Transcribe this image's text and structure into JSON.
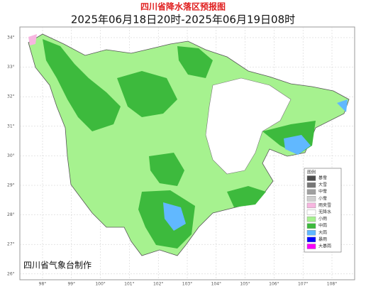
{
  "header": {
    "title": "四川省降水落区预报图",
    "subtitle": "2025年06月18日20时-2025年06月19日08时"
  },
  "map": {
    "lat_labels": [
      "34°",
      "33°",
      "32°",
      "31°",
      "30°",
      "29°",
      "28°",
      "27°",
      "26°"
    ],
    "lon_labels": [
      "98°",
      "99°",
      "100°",
      "101°",
      "102°",
      "103°",
      "104°",
      "105°",
      "106°",
      "107°",
      "108°"
    ],
    "credit": "四川省气象台制作"
  },
  "legend": {
    "title": "图例",
    "items": [
      {
        "label": "暴雪",
        "color": "#4d4d4d"
      },
      {
        "label": "大雪",
        "color": "#777777"
      },
      {
        "label": "中雪",
        "color": "#a0a0a0"
      },
      {
        "label": "小雪",
        "color": "#cfcfcf"
      },
      {
        "label": "雨夹雪",
        "color": "#f7b6e0"
      },
      {
        "label": "无降水",
        "color": "#ffffff"
      },
      {
        "label": "小雨",
        "color": "#a6f28f"
      },
      {
        "label": "中雨",
        "color": "#3dba3d"
      },
      {
        "label": "大雨",
        "color": "#61b8ff"
      },
      {
        "label": "暴雨",
        "color": "#0000fe"
      },
      {
        "label": "大暴雨",
        "color": "#fa00fa"
      }
    ]
  }
}
